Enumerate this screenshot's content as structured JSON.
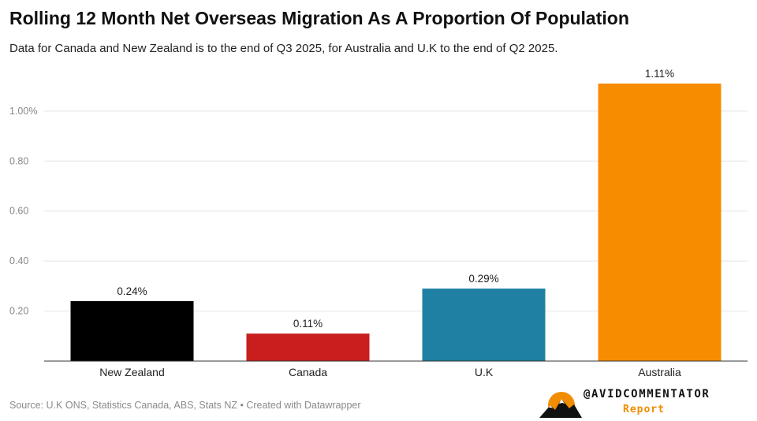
{
  "title": "Rolling 12 Month Net Overseas Migration As A Proportion Of Population",
  "subtitle": "Data for Canada and New Zealand is to the end of Q3 2025, for Australia and U.K to the end of Q2 2025.",
  "source": "Source: U.K ONS, Statistics Canada, ABS, Stats NZ • Created with Datawrapper",
  "logo": {
    "handle": "@AVIDCOMMENTATOR",
    "tagline": "Report",
    "accent": "#f28c00"
  },
  "chart_data": {
    "type": "bar",
    "categories": [
      "New Zealand",
      "Canada",
      "U.K",
      "Australia"
    ],
    "values": [
      0.24,
      0.11,
      0.29,
      1.11
    ],
    "value_labels": [
      "0.24%",
      "0.11%",
      "0.29%",
      "1.11%"
    ],
    "colors": [
      "#000000",
      "#c81e1e",
      "#1f80a3",
      "#f88c00"
    ],
    "yticks": [
      0.2,
      0.4,
      0.6,
      0.8,
      1.0
    ],
    "ytick_labels": [
      "0.20",
      "0.40",
      "0.60",
      "0.80",
      "1.00%"
    ],
    "ylim": [
      0,
      1.11
    ],
    "grid": true,
    "xlabel": "",
    "ylabel": ""
  }
}
